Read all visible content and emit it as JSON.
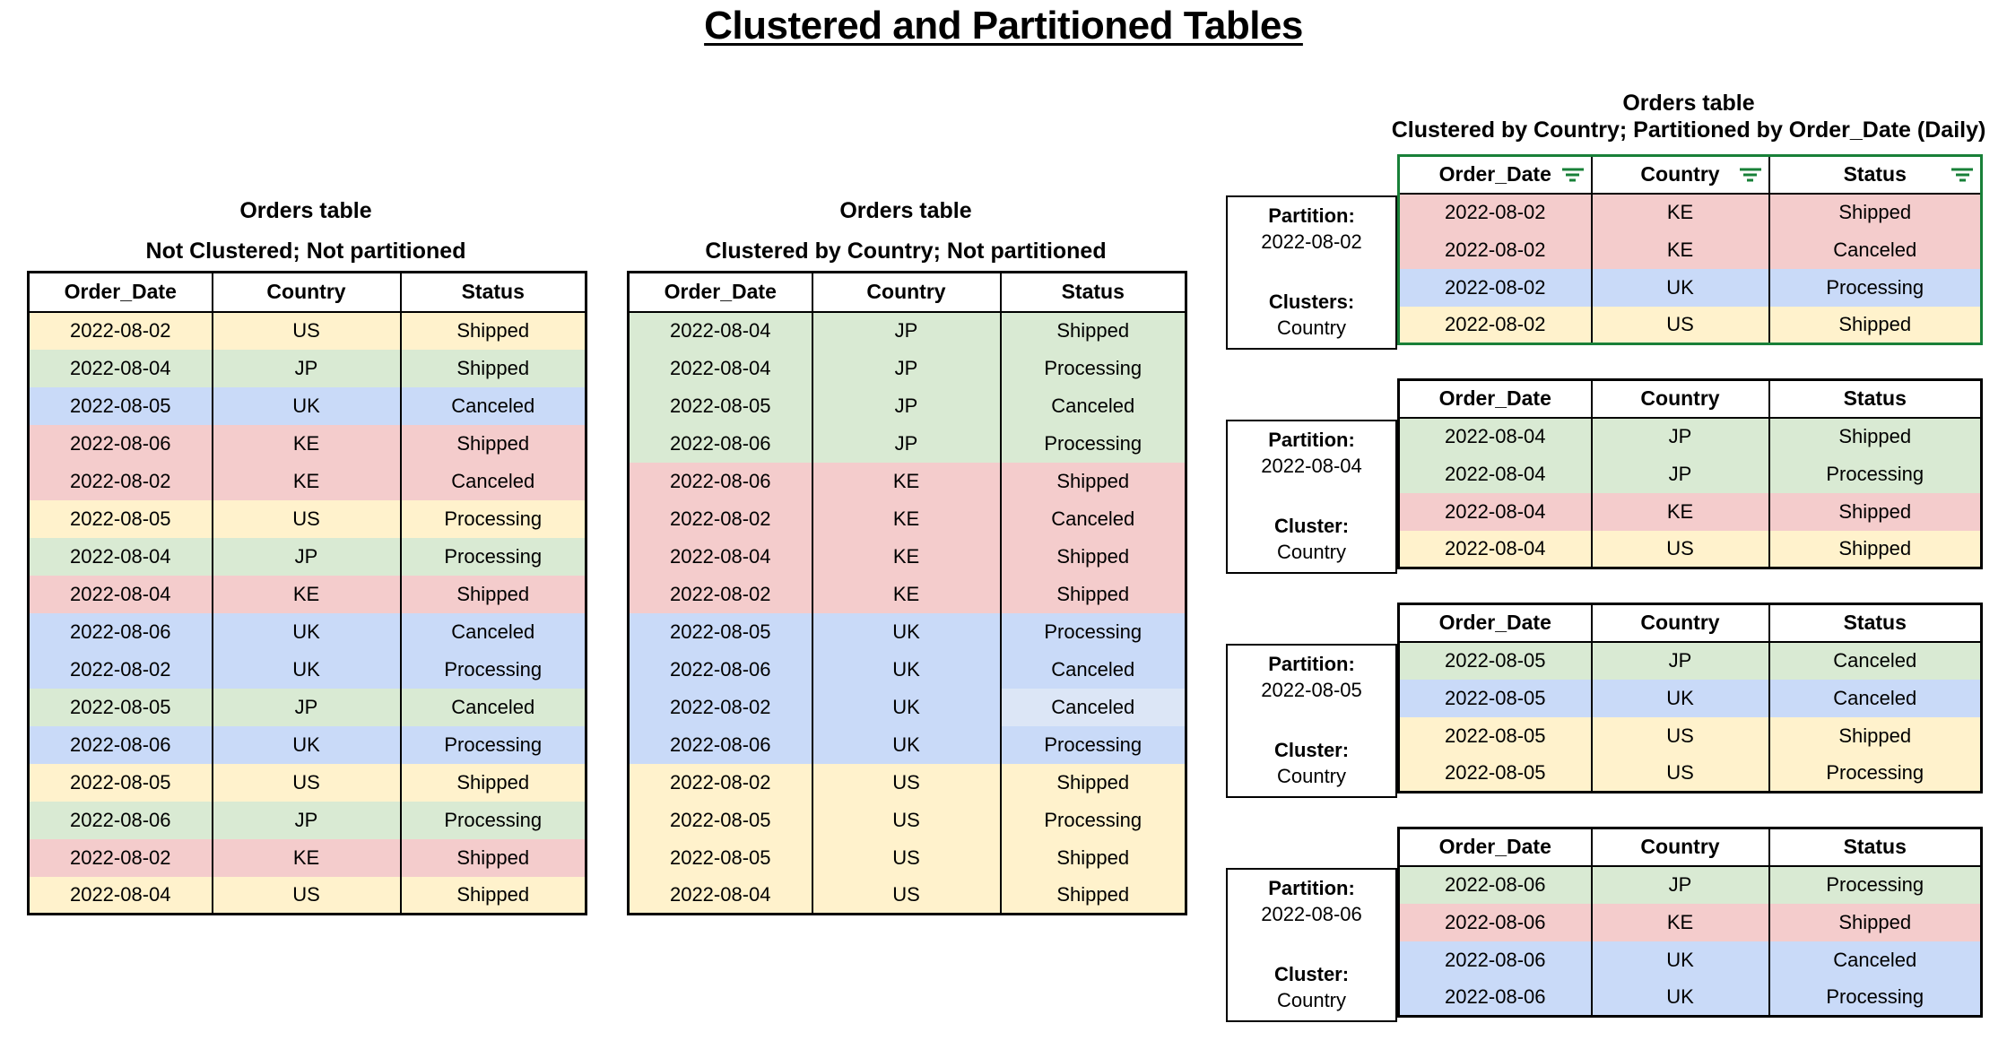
{
  "page_title": "Clustered and Partitioned Tables",
  "columns": [
    "Order_Date",
    "Country",
    "Status"
  ],
  "colors": {
    "US": "#fff2cc",
    "JP": "#d9ead3",
    "UK": "#c9daf8",
    "KE": "#f4cccc",
    "light_blue_cell": "#dce6f6",
    "accent_green": "#188038",
    "border_black": "#000000"
  },
  "icons": {
    "header_filter": "filter-icon"
  },
  "unclustered": {
    "title": "Orders table",
    "subtitle": "Not Clustered; Not partitioned",
    "rows": [
      [
        "2022-08-02",
        "US",
        "Shipped"
      ],
      [
        "2022-08-04",
        "JP",
        "Shipped"
      ],
      [
        "2022-08-05",
        "UK",
        "Canceled"
      ],
      [
        "2022-08-06",
        "KE",
        "Shipped"
      ],
      [
        "2022-08-02",
        "KE",
        "Canceled"
      ],
      [
        "2022-08-05",
        "US",
        "Processing"
      ],
      [
        "2022-08-04",
        "JP",
        "Processing"
      ],
      [
        "2022-08-04",
        "KE",
        "Shipped"
      ],
      [
        "2022-08-06",
        "UK",
        "Canceled"
      ],
      [
        "2022-08-02",
        "UK",
        "Processing"
      ],
      [
        "2022-08-05",
        "JP",
        "Canceled"
      ],
      [
        "2022-08-06",
        "UK",
        "Processing"
      ],
      [
        "2022-08-05",
        "US",
        "Shipped"
      ],
      [
        "2022-08-06",
        "JP",
        "Processing"
      ],
      [
        "2022-08-02",
        "KE",
        "Shipped"
      ],
      [
        "2022-08-04",
        "US",
        "Shipped"
      ]
    ]
  },
  "clustered": {
    "title": "Orders table",
    "subtitle": "Clustered by Country; Not partitioned",
    "rows": [
      [
        "2022-08-04",
        "JP",
        "Shipped"
      ],
      [
        "2022-08-04",
        "JP",
        "Processing"
      ],
      [
        "2022-08-05",
        "JP",
        "Canceled"
      ],
      [
        "2022-08-06",
        "JP",
        "Processing"
      ],
      [
        "2022-08-06",
        "KE",
        "Shipped"
      ],
      [
        "2022-08-02",
        "KE",
        "Canceled"
      ],
      [
        "2022-08-04",
        "KE",
        "Shipped"
      ],
      [
        "2022-08-02",
        "KE",
        "Shipped"
      ],
      [
        "2022-08-05",
        "UK",
        "Processing"
      ],
      [
        "2022-08-06",
        "UK",
        "Canceled"
      ],
      [
        "2022-08-02",
        "UK",
        "Canceled"
      ],
      [
        "2022-08-06",
        "UK",
        "Processing"
      ],
      [
        "2022-08-02",
        "US",
        "Shipped"
      ],
      [
        "2022-08-05",
        "US",
        "Processing"
      ],
      [
        "2022-08-05",
        "US",
        "Shipped"
      ],
      [
        "2022-08-04",
        "US",
        "Shipped"
      ]
    ],
    "light_cell": {
      "row": 10,
      "col": 2
    }
  },
  "partitioned": {
    "title": "Orders table",
    "subtitle": "Clustered by Country; Partitioned by Order_Date (Daily)",
    "groups": [
      {
        "partition_label": "Partition:",
        "partition_value": "2022-08-02",
        "cluster_label": "Clusters:",
        "cluster_value": "Country",
        "filter_icons": true,
        "green_border": true,
        "rows": [
          [
            "2022-08-02",
            "KE",
            "Shipped"
          ],
          [
            "2022-08-02",
            "KE",
            "Canceled"
          ],
          [
            "2022-08-02",
            "UK",
            "Processing"
          ],
          [
            "2022-08-02",
            "US",
            "Shipped"
          ]
        ]
      },
      {
        "partition_label": "Partition:",
        "partition_value": "2022-08-04",
        "cluster_label": "Cluster:",
        "cluster_value": "Country",
        "filter_icons": false,
        "green_border": false,
        "rows": [
          [
            "2022-08-04",
            "JP",
            "Shipped"
          ],
          [
            "2022-08-04",
            "JP",
            "Processing"
          ],
          [
            "2022-08-04",
            "KE",
            "Shipped"
          ],
          [
            "2022-08-04",
            "US",
            "Shipped"
          ]
        ]
      },
      {
        "partition_label": "Partition:",
        "partition_value": "2022-08-05",
        "cluster_label": "Cluster:",
        "cluster_value": "Country",
        "filter_icons": false,
        "green_border": false,
        "rows": [
          [
            "2022-08-05",
            "JP",
            "Canceled"
          ],
          [
            "2022-08-05",
            "UK",
            "Canceled"
          ],
          [
            "2022-08-05",
            "US",
            "Shipped"
          ],
          [
            "2022-08-05",
            "US",
            "Processing"
          ]
        ]
      },
      {
        "partition_label": "Partition:",
        "partition_value": "2022-08-06",
        "cluster_label": "Cluster:",
        "cluster_value": "Country",
        "filter_icons": false,
        "green_border": false,
        "rows": [
          [
            "2022-08-06",
            "JP",
            "Processing"
          ],
          [
            "2022-08-06",
            "KE",
            "Shipped"
          ],
          [
            "2022-08-06",
            "UK",
            "Canceled"
          ],
          [
            "2022-08-06",
            "UK",
            "Processing"
          ]
        ]
      }
    ]
  }
}
